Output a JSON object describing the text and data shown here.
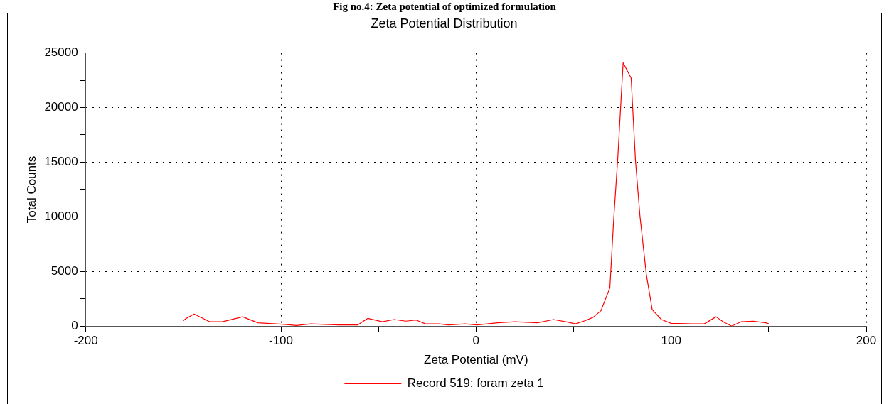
{
  "chart_data": {
    "type": "line",
    "title": "Zeta Potential Distribution",
    "xlabel": "Zeta Potential (mV)",
    "ylabel": "Total Counts",
    "annotations": [
      "Fig no.4: Zeta potential of optimized formulation"
    ],
    "x": [
      -150,
      -148.6,
      -144.5,
      -136.6,
      -130,
      -119.6,
      -111.8,
      -98,
      -92,
      -84.7,
      -70,
      -60.7,
      -55.5,
      -48,
      -42,
      -36,
      -30.7,
      -25.9,
      -19,
      -14,
      -5.6,
      0.5,
      11,
      20,
      31.5,
      39.7,
      46,
      51,
      56,
      60,
      64,
      68.6,
      70.5,
      72.7,
      74.6,
      75.4,
      79.5,
      81.7,
      84,
      87.3,
      90.3,
      95,
      100,
      111,
      117,
      123,
      127,
      131,
      136,
      142,
      148.5,
      150
    ],
    "series": [
      {
        "name": "Record 519: foram zeta 1",
        "color": "#ff0000",
        "values": [
          500,
          700,
          1100,
          400,
          400,
          850,
          300,
          150,
          50,
          200,
          100,
          100,
          700,
          400,
          600,
          450,
          550,
          200,
          200,
          100,
          200,
          100,
          300,
          400,
          300,
          600,
          400,
          200,
          500,
          800,
          1400,
          3500,
          9600,
          15500,
          21600,
          24100,
          22700,
          15200,
          10100,
          4700,
          1500,
          600,
          250,
          200,
          200,
          850,
          350,
          0,
          400,
          450,
          300,
          200
        ]
      }
    ],
    "xlim": [
      -200,
      200
    ],
    "xticks": [
      -200,
      {
        "value": -150,
        "label": null
      },
      -100,
      {
        "value": -50,
        "label": null
      },
      0,
      {
        "value": 50,
        "label": null
      },
      100,
      {
        "value": 150,
        "label": null
      },
      200
    ],
    "ylim": [
      0,
      25000
    ],
    "yticks": [
      0,
      {
        "value": 2500,
        "label": null
      },
      5000,
      {
        "value": 7500,
        "label": null
      },
      10000,
      {
        "value": 12500,
        "label": null
      },
      15000,
      {
        "value": 17500,
        "label": null
      },
      20000,
      {
        "value": 22500,
        "label": null
      },
      25000
    ],
    "grid": true,
    "legend": "bottom",
    "marker": "none",
    "line_style": "solid"
  }
}
